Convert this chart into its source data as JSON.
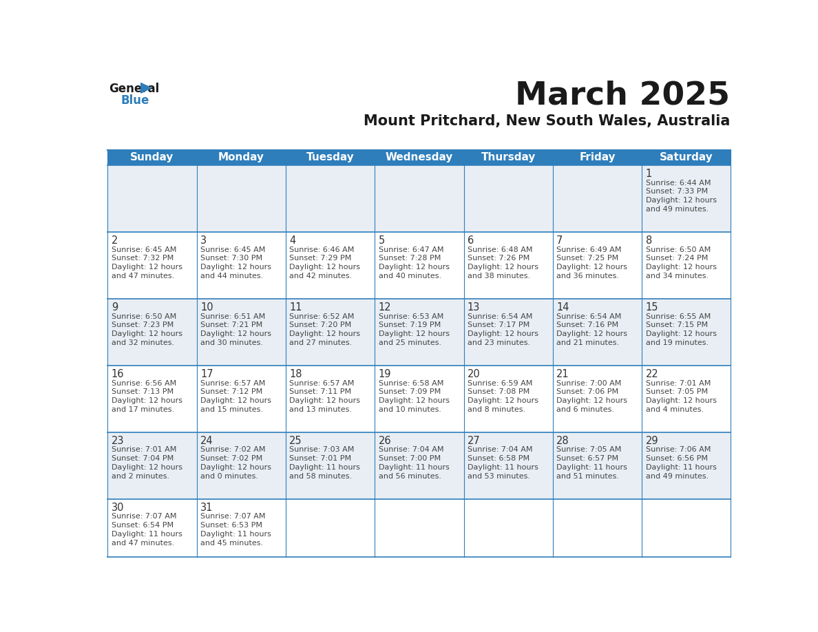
{
  "title": "March 2025",
  "subtitle": "Mount Pritchard, New South Wales, Australia",
  "days_of_week": [
    "Sunday",
    "Monday",
    "Tuesday",
    "Wednesday",
    "Thursday",
    "Friday",
    "Saturday"
  ],
  "header_bg": "#2e7ebb",
  "header_text": "#ffffff",
  "cell_bg_light": "#e8eef4",
  "cell_bg_white": "#ffffff",
  "border_color": "#2e7ebb",
  "day_number_color": "#333333",
  "cell_text_color": "#444444",
  "title_color": "#1a1a1a",
  "subtitle_color": "#1a1a1a",
  "logo_general_color": "#1a1a1a",
  "logo_blue_color": "#2e7ebb",
  "weeks": [
    [
      null,
      null,
      null,
      null,
      null,
      null,
      {
        "day": 1,
        "sunrise": "6:44 AM",
        "sunset": "7:33 PM",
        "daylight_h": "12 hours",
        "daylight_m": "and 49 minutes."
      }
    ],
    [
      {
        "day": 2,
        "sunrise": "6:45 AM",
        "sunset": "7:32 PM",
        "daylight_h": "12 hours",
        "daylight_m": "and 47 minutes."
      },
      {
        "day": 3,
        "sunrise": "6:45 AM",
        "sunset": "7:30 PM",
        "daylight_h": "12 hours",
        "daylight_m": "and 44 minutes."
      },
      {
        "day": 4,
        "sunrise": "6:46 AM",
        "sunset": "7:29 PM",
        "daylight_h": "12 hours",
        "daylight_m": "and 42 minutes."
      },
      {
        "day": 5,
        "sunrise": "6:47 AM",
        "sunset": "7:28 PM",
        "daylight_h": "12 hours",
        "daylight_m": "and 40 minutes."
      },
      {
        "day": 6,
        "sunrise": "6:48 AM",
        "sunset": "7:26 PM",
        "daylight_h": "12 hours",
        "daylight_m": "and 38 minutes."
      },
      {
        "day": 7,
        "sunrise": "6:49 AM",
        "sunset": "7:25 PM",
        "daylight_h": "12 hours",
        "daylight_m": "and 36 minutes."
      },
      {
        "day": 8,
        "sunrise": "6:50 AM",
        "sunset": "7:24 PM",
        "daylight_h": "12 hours",
        "daylight_m": "and 34 minutes."
      }
    ],
    [
      {
        "day": 9,
        "sunrise": "6:50 AM",
        "sunset": "7:23 PM",
        "daylight_h": "12 hours",
        "daylight_m": "and 32 minutes."
      },
      {
        "day": 10,
        "sunrise": "6:51 AM",
        "sunset": "7:21 PM",
        "daylight_h": "12 hours",
        "daylight_m": "and 30 minutes."
      },
      {
        "day": 11,
        "sunrise": "6:52 AM",
        "sunset": "7:20 PM",
        "daylight_h": "12 hours",
        "daylight_m": "and 27 minutes."
      },
      {
        "day": 12,
        "sunrise": "6:53 AM",
        "sunset": "7:19 PM",
        "daylight_h": "12 hours",
        "daylight_m": "and 25 minutes."
      },
      {
        "day": 13,
        "sunrise": "6:54 AM",
        "sunset": "7:17 PM",
        "daylight_h": "12 hours",
        "daylight_m": "and 23 minutes."
      },
      {
        "day": 14,
        "sunrise": "6:54 AM",
        "sunset": "7:16 PM",
        "daylight_h": "12 hours",
        "daylight_m": "and 21 minutes."
      },
      {
        "day": 15,
        "sunrise": "6:55 AM",
        "sunset": "7:15 PM",
        "daylight_h": "12 hours",
        "daylight_m": "and 19 minutes."
      }
    ],
    [
      {
        "day": 16,
        "sunrise": "6:56 AM",
        "sunset": "7:13 PM",
        "daylight_h": "12 hours",
        "daylight_m": "and 17 minutes."
      },
      {
        "day": 17,
        "sunrise": "6:57 AM",
        "sunset": "7:12 PM",
        "daylight_h": "12 hours",
        "daylight_m": "and 15 minutes."
      },
      {
        "day": 18,
        "sunrise": "6:57 AM",
        "sunset": "7:11 PM",
        "daylight_h": "12 hours",
        "daylight_m": "and 13 minutes."
      },
      {
        "day": 19,
        "sunrise": "6:58 AM",
        "sunset": "7:09 PM",
        "daylight_h": "12 hours",
        "daylight_m": "and 10 minutes."
      },
      {
        "day": 20,
        "sunrise": "6:59 AM",
        "sunset": "7:08 PM",
        "daylight_h": "12 hours",
        "daylight_m": "and 8 minutes."
      },
      {
        "day": 21,
        "sunrise": "7:00 AM",
        "sunset": "7:06 PM",
        "daylight_h": "12 hours",
        "daylight_m": "and 6 minutes."
      },
      {
        "day": 22,
        "sunrise": "7:01 AM",
        "sunset": "7:05 PM",
        "daylight_h": "12 hours",
        "daylight_m": "and 4 minutes."
      }
    ],
    [
      {
        "day": 23,
        "sunrise": "7:01 AM",
        "sunset": "7:04 PM",
        "daylight_h": "12 hours",
        "daylight_m": "and 2 minutes."
      },
      {
        "day": 24,
        "sunrise": "7:02 AM",
        "sunset": "7:02 PM",
        "daylight_h": "12 hours",
        "daylight_m": "and 0 minutes."
      },
      {
        "day": 25,
        "sunrise": "7:03 AM",
        "sunset": "7:01 PM",
        "daylight_h": "11 hours",
        "daylight_m": "and 58 minutes."
      },
      {
        "day": 26,
        "sunrise": "7:04 AM",
        "sunset": "7:00 PM",
        "daylight_h": "11 hours",
        "daylight_m": "and 56 minutes."
      },
      {
        "day": 27,
        "sunrise": "7:04 AM",
        "sunset": "6:58 PM",
        "daylight_h": "11 hours",
        "daylight_m": "and 53 minutes."
      },
      {
        "day": 28,
        "sunrise": "7:05 AM",
        "sunset": "6:57 PM",
        "daylight_h": "11 hours",
        "daylight_m": "and 51 minutes."
      },
      {
        "day": 29,
        "sunrise": "7:06 AM",
        "sunset": "6:56 PM",
        "daylight_h": "11 hours",
        "daylight_m": "and 49 minutes."
      }
    ],
    [
      {
        "day": 30,
        "sunrise": "7:07 AM",
        "sunset": "6:54 PM",
        "daylight_h": "11 hours",
        "daylight_m": "and 47 minutes."
      },
      {
        "day": 31,
        "sunrise": "7:07 AM",
        "sunset": "6:53 PM",
        "daylight_h": "11 hours",
        "daylight_m": "and 45 minutes."
      },
      null,
      null,
      null,
      null,
      null
    ]
  ]
}
